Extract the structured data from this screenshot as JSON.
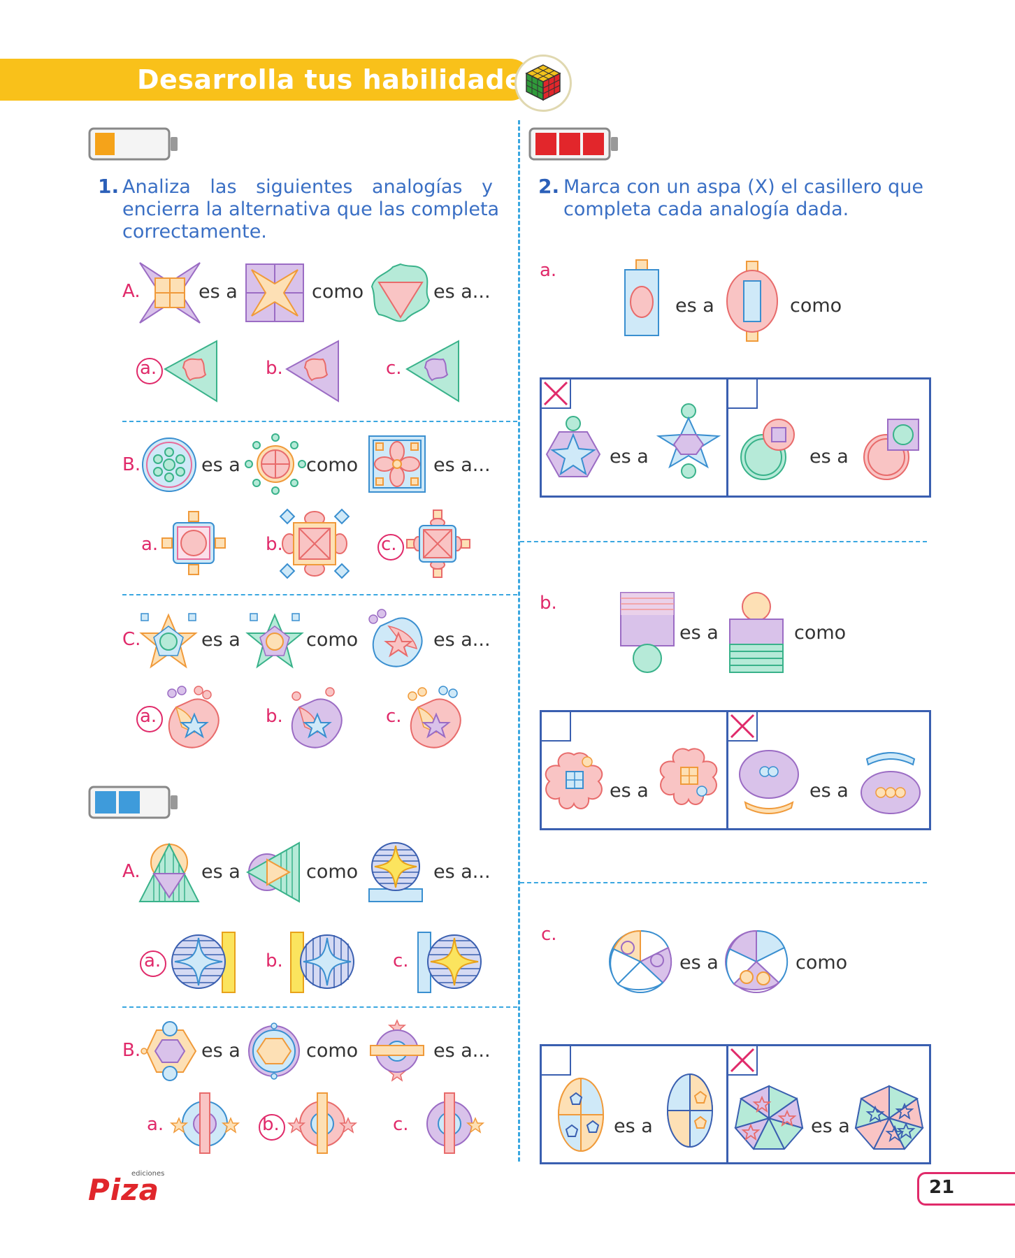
{
  "header": {
    "title": "Desarrolla tus habilidades"
  },
  "q1": {
    "number": "1.",
    "text_line1": "Analiza las siguientes analogías y",
    "text_line2": "encierra la alternativa que las completa",
    "text_line3": "correctamente.",
    "rows": [
      {
        "label": "A.",
        "t1": "es a",
        "t2": "como",
        "t3": "es a...",
        "options": [
          "a.",
          "b.",
          "c."
        ]
      },
      {
        "label": "B.",
        "t1": "es a",
        "t2": "como",
        "t3": "es a...",
        "options": [
          "a.",
          "b.",
          "c."
        ]
      },
      {
        "label": "C.",
        "t1": "es a",
        "t2": "como",
        "t3": "es a...",
        "options": [
          "a.",
          "b.",
          "c."
        ]
      }
    ]
  },
  "q1b": {
    "rows": [
      {
        "label": "A.",
        "t1": "es a",
        "t2": "como",
        "t3": "es a...",
        "options": [
          "a.",
          "b.",
          "c."
        ]
      },
      {
        "label": "B.",
        "t1": "es a",
        "t2": "como",
        "t3": "es a...",
        "options": [
          "a.",
          "b.",
          "c."
        ]
      }
    ]
  },
  "q2": {
    "number": "2.",
    "text_line1": "Marca con un aspa (X) el casillero que",
    "text_line2": "completa cada analogía dada.",
    "rows": [
      {
        "label": "a.",
        "t1": "es a",
        "t2": "como",
        "box1": "es a",
        "box2": "es a"
      },
      {
        "label": "b.",
        "t1": "es a",
        "t2": "como",
        "box1": "es a",
        "box2": "es a"
      },
      {
        "label": "c.",
        "t1": "es a",
        "t2": "como",
        "box1": "es a",
        "box2": "es a"
      }
    ]
  },
  "footer": {
    "logo": "Piza",
    "logo_small": "ediciones",
    "page_number": "21"
  },
  "colors": {
    "banner": "#f9c11a",
    "accent": "#e02a6a",
    "question": "#3a6fc4",
    "divider": "#3aa7e0",
    "box": "#3a5fb0"
  }
}
